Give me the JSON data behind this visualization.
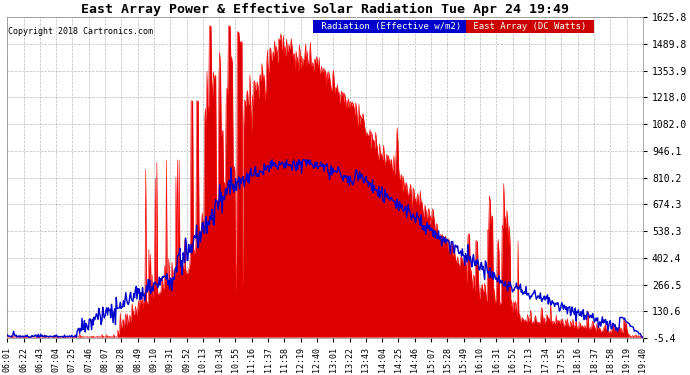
{
  "title": "East Array Power & Effective Solar Radiation Tue Apr 24 19:49",
  "copyright": "Copyright 2018 Cartronics.com",
  "legend_radiation": "Radiation (Effective w/m2)",
  "legend_east": "East Array (DC Watts)",
  "ylim": [
    -5.4,
    1625.8
  ],
  "yticks": [
    1625.8,
    1489.8,
    1353.9,
    1218.0,
    1082.0,
    946.1,
    810.2,
    674.3,
    538.3,
    402.4,
    266.5,
    130.6,
    -5.4
  ],
  "background_color": "#ffffff",
  "plot_bg_color": "#ffffff",
  "grid_color": "#aaaaaa",
  "red_fill_color": "#dd0000",
  "red_line_color": "#ff0000",
  "blue_line_color": "#0000cc",
  "title_color": "#000000",
  "tick_color": "#000000",
  "legend_radiation_bg": "#0000cc",
  "legend_east_bg": "#cc0000",
  "xtick_labels": [
    "06:01",
    "06:22",
    "06:43",
    "07:04",
    "07:25",
    "07:46",
    "08:07",
    "08:28",
    "08:49",
    "09:10",
    "09:31",
    "09:52",
    "10:13",
    "10:34",
    "10:55",
    "11:16",
    "11:37",
    "11:58",
    "12:19",
    "12:40",
    "13:01",
    "13:22",
    "13:43",
    "14:04",
    "14:25",
    "14:46",
    "15:07",
    "15:28",
    "15:49",
    "16:10",
    "16:31",
    "16:52",
    "17:13",
    "17:34",
    "17:55",
    "18:16",
    "18:37",
    "18:58",
    "19:19",
    "19:40"
  ],
  "n_points": 800
}
